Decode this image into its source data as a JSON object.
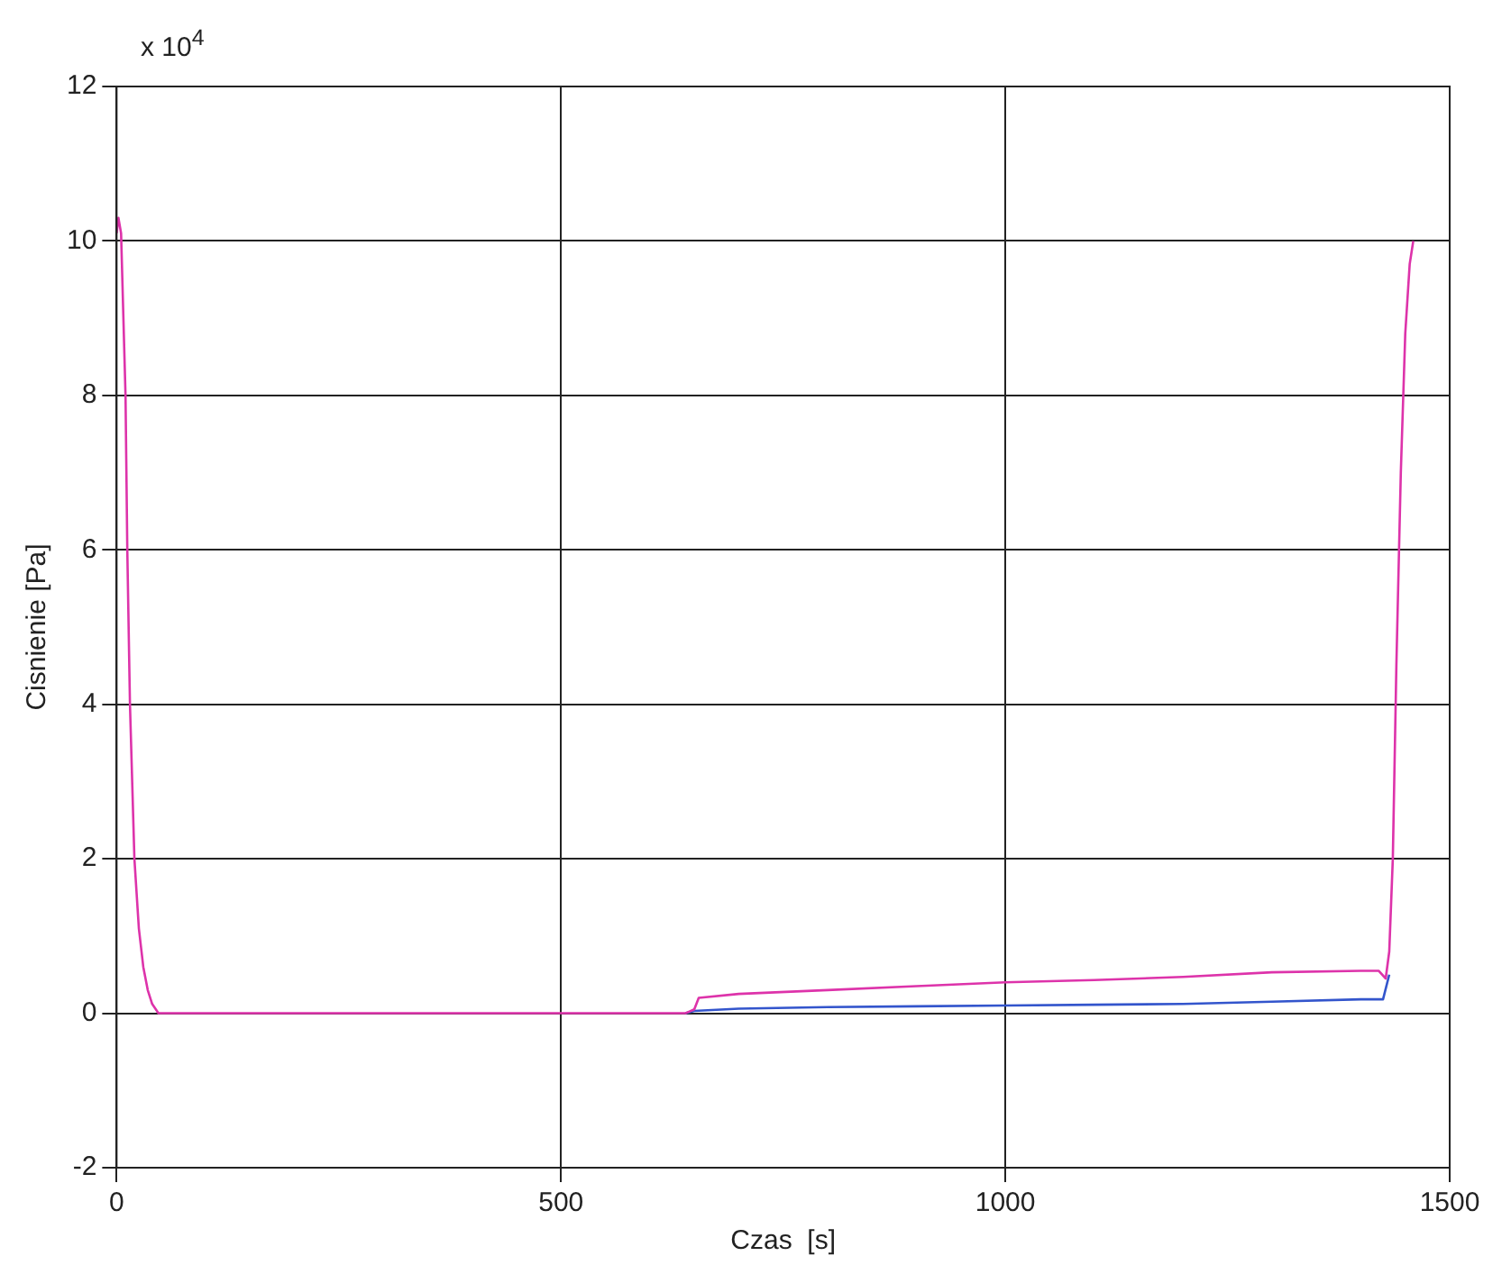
{
  "chart_data": {
    "type": "line",
    "xlabel": "Czas  [s]",
    "ylabel": "Cisnienie [Pa]",
    "annotations": [
      "x 10$^{4}$"
    ],
    "xlim": [
      0,
      1500
    ],
    "xticks": [
      0,
      500,
      1000,
      1500
    ],
    "ylim": [
      -2,
      12
    ],
    "yticks": [
      -2,
      0,
      2,
      4,
      6,
      8,
      10,
      12
    ],
    "grid": true,
    "legend": false,
    "marker": "none",
    "line_style": "solid",
    "series": [
      {
        "color": "#3355cc",
        "x": [
          640,
          650,
          700,
          800,
          900,
          1000,
          1100,
          1200,
          1300,
          1400,
          1425,
          1432
        ],
        "values": [
          0,
          0.03,
          0.06,
          0.08,
          0.09,
          0.1,
          0.11,
          0.12,
          0.15,
          0.18,
          0.18,
          0.5
        ]
      },
      {
        "color": "#dd33aa",
        "x": [
          0,
          2,
          5,
          10,
          12,
          15,
          20,
          25,
          30,
          35,
          40,
          47,
          60,
          640,
          650,
          655,
          700,
          800,
          900,
          1000,
          1100,
          1200,
          1300,
          1400,
          1420,
          1428,
          1432,
          1436,
          1440,
          1445,
          1450,
          1455,
          1459
        ],
        "values": [
          10.1,
          10.3,
          10.1,
          8,
          6,
          4,
          2,
          1.1,
          0.6,
          0.3,
          0.12,
          0,
          0,
          0,
          0.05,
          0.2,
          0.25,
          0.3,
          0.35,
          0.4,
          0.43,
          0.47,
          0.53,
          0.55,
          0.55,
          0.45,
          0.8,
          2,
          4.5,
          7,
          8.8,
          9.7,
          10
        ]
      }
    ]
  }
}
